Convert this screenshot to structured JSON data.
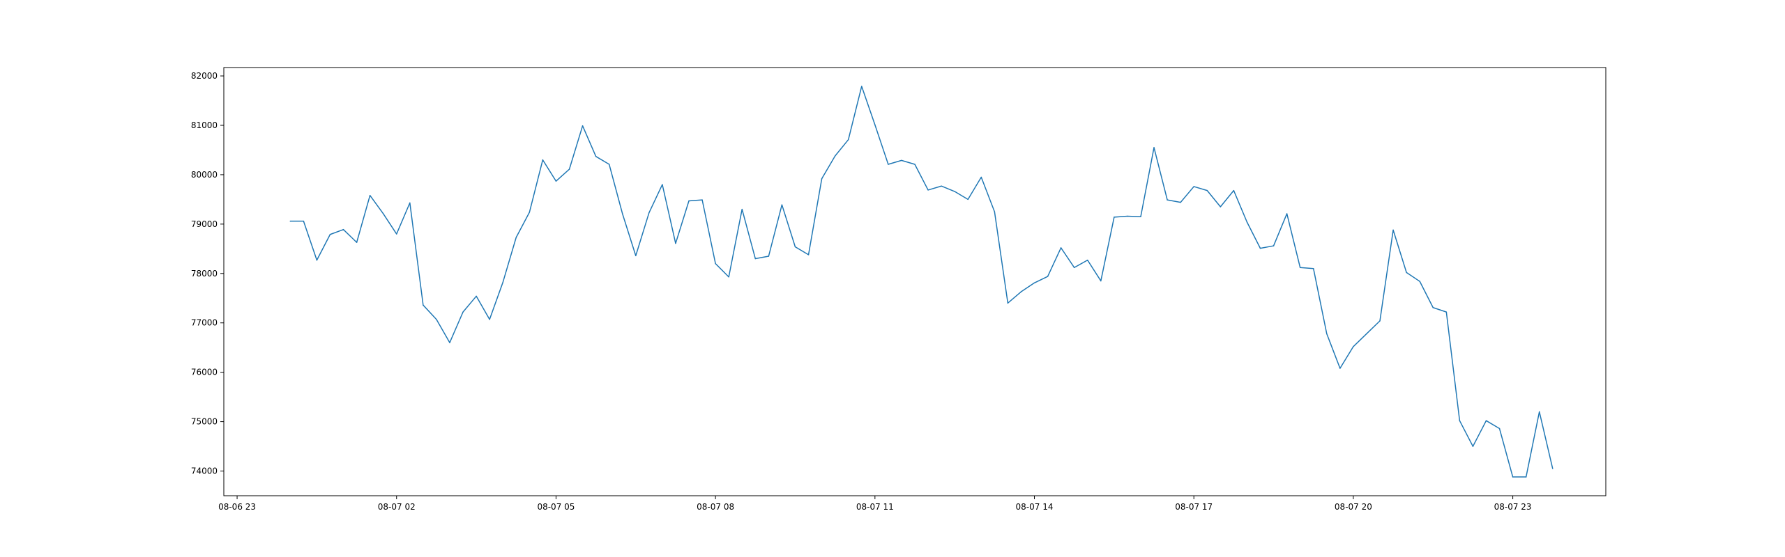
{
  "chart_data": {
    "type": "line",
    "title": "",
    "xlabel": "",
    "ylabel": "",
    "grid": false,
    "legend": "none",
    "line_color": "#1f77b4",
    "x_ticks": [
      "08-06 23",
      "08-07 02",
      "08-07 05",
      "08-07 08",
      "08-07 11",
      "08-07 14",
      "08-07 17",
      "08-07 20",
      "08-07 23"
    ],
    "y_ticks": [
      "74000",
      "75000",
      "76000",
      "77000",
      "78000",
      "79000",
      "80000",
      "81000",
      "82000"
    ],
    "xlim": [
      "2024-08-06 22:45",
      "2024-08-08 00:45"
    ],
    "ylim": [
      73500,
      82170
    ],
    "series": [
      {
        "x_start": "2024-08-07 00:00",
        "interval_minutes": 15,
        "values": [
          79060,
          79060,
          78270,
          78790,
          78890,
          78630,
          79580,
          79210,
          78800,
          79430,
          77360,
          77070,
          76600,
          77220,
          77540,
          77070,
          77820,
          78730,
          79240,
          80300,
          79870,
          80110,
          80990,
          80370,
          80210,
          79210,
          78360,
          79230,
          79800,
          78610,
          79470,
          79490,
          78200,
          77930,
          79300,
          78300,
          78350,
          79390,
          78540,
          78380,
          79920,
          80380,
          80710,
          81790,
          81010,
          80210,
          80290,
          80210,
          79690,
          79770,
          79660,
          79500,
          79950,
          79250,
          77400,
          77630,
          77810,
          77940,
          78520,
          78120,
          78270,
          77850,
          79140,
          79160,
          79150,
          80550,
          79490,
          79440,
          79760,
          79680,
          79350,
          79680,
          79040,
          78510,
          78560,
          79210,
          78120,
          78100,
          76780,
          76080,
          76520,
          76780,
          77040,
          78880,
          78020,
          77840,
          77310,
          77220,
          75020,
          74500,
          75020,
          74860,
          73880,
          73880,
          75200,
          74050
        ]
      }
    ]
  }
}
